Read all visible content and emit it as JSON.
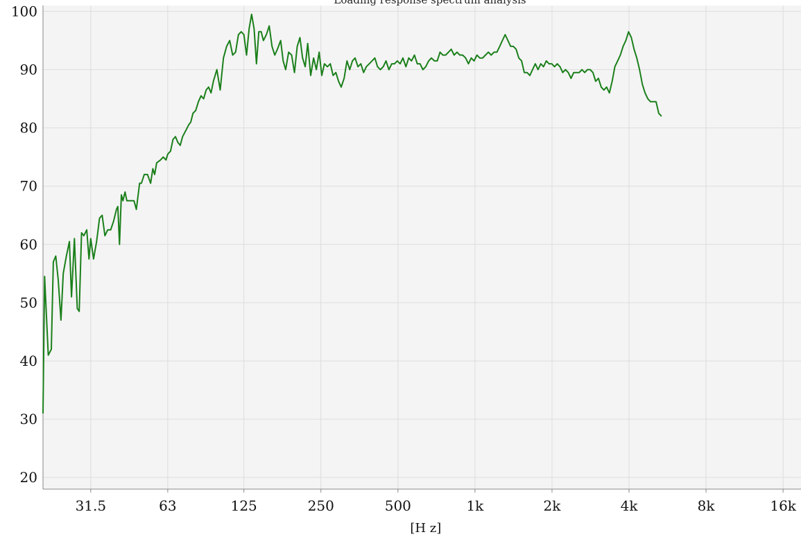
{
  "chart_data": {
    "type": "line",
    "title": "Loading response spectrum analysis",
    "xlabel": "[H z]",
    "ylabel": "",
    "x_scale": "log",
    "xlim": [
      20.5,
      18800
    ],
    "ylim": [
      18,
      101
    ],
    "x_ticks": [
      {
        "value": 31.5,
        "label": "31.5"
      },
      {
        "value": 63,
        "label": "63"
      },
      {
        "value": 125,
        "label": "125"
      },
      {
        "value": 250,
        "label": "250"
      },
      {
        "value": 500,
        "label": "500"
      },
      {
        "value": 1000,
        "label": "1k"
      },
      {
        "value": 2000,
        "label": "2k"
      },
      {
        "value": 4000,
        "label": "4k"
      },
      {
        "value": 8000,
        "label": "8k"
      },
      {
        "value": 16000,
        "label": "16k"
      }
    ],
    "y_ticks": [
      20,
      30,
      40,
      50,
      60,
      70,
      80,
      90,
      100
    ],
    "grid": true,
    "legend": "none",
    "colors": {
      "line": "#1a7f1a",
      "plot_bg": "#f4f4f4",
      "grid": "#dddddd",
      "axis": "#888888"
    },
    "series": [
      {
        "color": "#1a7f1a",
        "points": [
          [
            20.5,
            31
          ],
          [
            20.8,
            54.5
          ],
          [
            21.5,
            41
          ],
          [
            22.1,
            42
          ],
          [
            22.5,
            57
          ],
          [
            23,
            58
          ],
          [
            23.5,
            54
          ],
          [
            24.1,
            47
          ],
          [
            24.6,
            55
          ],
          [
            25.3,
            58
          ],
          [
            26,
            60.5
          ],
          [
            26.5,
            51
          ],
          [
            27.2,
            61
          ],
          [
            27.9,
            49
          ],
          [
            28.4,
            48.5
          ],
          [
            29,
            62
          ],
          [
            29.6,
            61.5
          ],
          [
            30.4,
            62.5
          ],
          [
            31,
            57.5
          ],
          [
            31.5,
            61
          ],
          [
            32.3,
            57.5
          ],
          [
            33.2,
            60.5
          ],
          [
            34.1,
            64.5
          ],
          [
            34.9,
            65
          ],
          [
            35.8,
            61.5
          ],
          [
            36.7,
            62.5
          ],
          [
            37.7,
            62.5
          ],
          [
            38.7,
            64
          ],
          [
            39.7,
            66
          ],
          [
            40.2,
            66.5
          ],
          [
            40.8,
            60
          ],
          [
            41.5,
            68.5
          ],
          [
            42.1,
            67.5
          ],
          [
            42.9,
            69
          ],
          [
            43.6,
            67.5
          ],
          [
            45,
            67.5
          ],
          [
            46.5,
            67.5
          ],
          [
            47.5,
            66
          ],
          [
            48.9,
            70.5
          ],
          [
            49.7,
            70.5
          ],
          [
            51,
            72
          ],
          [
            52.5,
            72
          ],
          [
            54,
            70.5
          ],
          [
            55.1,
            73
          ],
          [
            56,
            72
          ],
          [
            57,
            74
          ],
          [
            59,
            74.5
          ],
          [
            60.5,
            75
          ],
          [
            62,
            74.5
          ],
          [
            63,
            75.5
          ],
          [
            64.6,
            76
          ],
          [
            66,
            78
          ],
          [
            67.5,
            78.5
          ],
          [
            69,
            77.5
          ],
          [
            70.5,
            77
          ],
          [
            72,
            78.5
          ],
          [
            74,
            79.5
          ],
          [
            76,
            80.5
          ],
          [
            77.5,
            81
          ],
          [
            79,
            82.5
          ],
          [
            81,
            83
          ],
          [
            83,
            84.5
          ],
          [
            85,
            85.5
          ],
          [
            87,
            85
          ],
          [
            89,
            86.5
          ],
          [
            91,
            87
          ],
          [
            93,
            86
          ],
          [
            95,
            88
          ],
          [
            98,
            90
          ],
          [
            101,
            86.5
          ],
          [
            104,
            92
          ],
          [
            107,
            94
          ],
          [
            110,
            95
          ],
          [
            113,
            92.5
          ],
          [
            116,
            93
          ],
          [
            119,
            96
          ],
          [
            122,
            96.5
          ],
          [
            125,
            96
          ],
          [
            128,
            92.5
          ],
          [
            131,
            97
          ],
          [
            134,
            99.5
          ],
          [
            137,
            97
          ],
          [
            140,
            91
          ],
          [
            143,
            96.5
          ],
          [
            146,
            96.5
          ],
          [
            149,
            95
          ],
          [
            153,
            96
          ],
          [
            157,
            97.5
          ],
          [
            161,
            94
          ],
          [
            165,
            92.5
          ],
          [
            169,
            93.5
          ],
          [
            174,
            95
          ],
          [
            178,
            91.5
          ],
          [
            182,
            90
          ],
          [
            187,
            93
          ],
          [
            192,
            92.5
          ],
          [
            197,
            89.5
          ],
          [
            202,
            94
          ],
          [
            207,
            95.5
          ],
          [
            212,
            92
          ],
          [
            217,
            90.5
          ],
          [
            222,
            94.5
          ],
          [
            228,
            89
          ],
          [
            234,
            92
          ],
          [
            240,
            90
          ],
          [
            246,
            93
          ],
          [
            252,
            89
          ],
          [
            258,
            91
          ],
          [
            265,
            90.5
          ],
          [
            272,
            91
          ],
          [
            279,
            89
          ],
          [
            286,
            89.5
          ],
          [
            293,
            88
          ],
          [
            300,
            87
          ],
          [
            308,
            88.5
          ],
          [
            316,
            91.5
          ],
          [
            324,
            90
          ],
          [
            332,
            91.5
          ],
          [
            340,
            92
          ],
          [
            349,
            90.5
          ],
          [
            358,
            91
          ],
          [
            367,
            89.5
          ],
          [
            376,
            90.5
          ],
          [
            386,
            91
          ],
          [
            396,
            91.5
          ],
          [
            406,
            92
          ],
          [
            416,
            90.5
          ],
          [
            427,
            90
          ],
          [
            438,
            90.5
          ],
          [
            449,
            91.5
          ],
          [
            461,
            90
          ],
          [
            473,
            91
          ],
          [
            485,
            91
          ],
          [
            497,
            91.5
          ],
          [
            510,
            91
          ],
          [
            523,
            92
          ],
          [
            537,
            90.5
          ],
          [
            551,
            92
          ],
          [
            565,
            91.5
          ],
          [
            580,
            92.5
          ],
          [
            595,
            91
          ],
          [
            610,
            91
          ],
          [
            626,
            90
          ],
          [
            642,
            90.5
          ],
          [
            659,
            91.5
          ],
          [
            676,
            92
          ],
          [
            694,
            91.5
          ],
          [
            712,
            91.5
          ],
          [
            730,
            93
          ],
          [
            749,
            92.5
          ],
          [
            768,
            92.5
          ],
          [
            788,
            93
          ],
          [
            808,
            93.5
          ],
          [
            829,
            92.5
          ],
          [
            851,
            93
          ],
          [
            873,
            92.5
          ],
          [
            895,
            92.5
          ],
          [
            919,
            92
          ],
          [
            943,
            91
          ],
          [
            967,
            92
          ],
          [
            992,
            91.5
          ],
          [
            1018,
            92.5
          ],
          [
            1044,
            92
          ],
          [
            1072,
            92
          ],
          [
            1099,
            92.5
          ],
          [
            1128,
            93
          ],
          [
            1157,
            92.5
          ],
          [
            1187,
            93
          ],
          [
            1218,
            93
          ],
          [
            1250,
            94
          ],
          [
            1280,
            95
          ],
          [
            1312,
            96
          ],
          [
            1345,
            95
          ],
          [
            1378,
            94
          ],
          [
            1412,
            94
          ],
          [
            1448,
            93.5
          ],
          [
            1484,
            92
          ],
          [
            1521,
            91.5
          ],
          [
            1559,
            89.5
          ],
          [
            1598,
            89.5
          ],
          [
            1638,
            89
          ],
          [
            1679,
            90
          ],
          [
            1721,
            91
          ],
          [
            1764,
            90
          ],
          [
            1808,
            91
          ],
          [
            1853,
            90.5
          ],
          [
            1899,
            91.5
          ],
          [
            1947,
            91
          ],
          [
            1996,
            91
          ],
          [
            2046,
            90.5
          ],
          [
            2097,
            91
          ],
          [
            2149,
            90.5
          ],
          [
            2203,
            89.5
          ],
          [
            2258,
            90
          ],
          [
            2315,
            89.5
          ],
          [
            2373,
            88.5
          ],
          [
            2432,
            89.5
          ],
          [
            2493,
            89.5
          ],
          [
            2555,
            89.5
          ],
          [
            2619,
            90
          ],
          [
            2684,
            89.5
          ],
          [
            2752,
            90
          ],
          [
            2820,
            90
          ],
          [
            2891,
            89.5
          ],
          [
            2963,
            88
          ],
          [
            3037,
            88.5
          ],
          [
            3113,
            87
          ],
          [
            3191,
            86.5
          ],
          [
            3270,
            87
          ],
          [
            3352,
            86
          ],
          [
            3436,
            88
          ],
          [
            3522,
            90.5
          ],
          [
            3610,
            91.5
          ],
          [
            3700,
            92.5
          ],
          [
            3792,
            94
          ],
          [
            3887,
            95
          ],
          [
            3984,
            96.5
          ],
          [
            4084,
            95.5
          ],
          [
            4186,
            93.5
          ],
          [
            4290,
            92
          ],
          [
            4398,
            90
          ],
          [
            4508,
            87.5
          ],
          [
            4620,
            86
          ],
          [
            4736,
            85
          ],
          [
            4854,
            84.5
          ],
          [
            4976,
            84.5
          ],
          [
            5100,
            84.5
          ],
          [
            5228,
            82.5
          ],
          [
            5358,
            82
          ]
        ]
      }
    ]
  }
}
